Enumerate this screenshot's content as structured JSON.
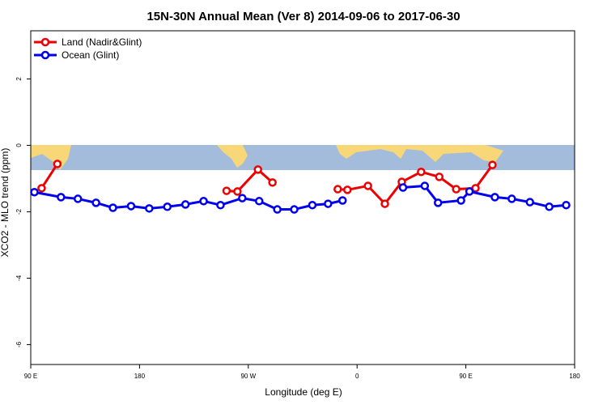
{
  "chart_data": {
    "type": "line",
    "title": "15N-30N Annual Mean (Ver 8)   2014-09-06 to 2017-06-30",
    "xlabel": "Longitude (deg E)",
    "ylabel": "XCO2 - MLO trend (ppm)",
    "xlim": [
      90,
      540
    ],
    "ylim": [
      -6.6,
      3.45
    ],
    "xticks": [
      {
        "value": 90,
        "label": "90 E"
      },
      {
        "value": 180,
        "label": "180"
      },
      {
        "value": 270,
        "label": "90 W"
      },
      {
        "value": 360,
        "label": "0"
      },
      {
        "value": 450,
        "label": "90 E"
      },
      {
        "value": 540,
        "label": "180"
      }
    ],
    "yticks": [
      -6,
      -4,
      -2,
      0,
      2
    ],
    "legend": "top-left",
    "series": [
      {
        "name": "Land (Nadir&Glint)",
        "color": "#ee0000",
        "x": [
          99,
          112,
          180,
          252,
          261,
          278,
          290,
          317,
          344,
          352,
          369,
          383,
          397,
          413,
          428,
          442,
          458,
          472
        ],
        "values": [
          -1.29,
          -0.56,
          null,
          -1.37,
          -1.39,
          -0.73,
          -1.12,
          null,
          -1.32,
          -1.34,
          -1.22,
          -1.76,
          -1.1,
          -0.8,
          -0.95,
          -1.32,
          -1.29,
          -0.59
        ]
      },
      {
        "name": "Ocean (Glint)",
        "color": "#0000ee",
        "x": [
          93,
          115,
          129,
          144,
          158,
          173,
          188,
          203,
          218,
          233,
          247,
          265,
          279,
          294,
          308,
          323,
          336,
          348,
          373,
          398,
          416,
          427,
          446,
          453,
          474,
          488,
          503,
          519,
          533
        ],
        "values": [
          -1.41,
          -1.56,
          -1.61,
          -1.73,
          -1.88,
          -1.83,
          -1.9,
          -1.85,
          -1.78,
          -1.68,
          -1.8,
          -1.59,
          -1.68,
          -1.93,
          -1.93,
          -1.8,
          -1.76,
          -1.66,
          null,
          -1.27,
          -1.22,
          -1.73,
          -1.66,
          -1.39,
          -1.56,
          -1.61,
          -1.71,
          -1.85,
          -1.8
        ]
      }
    ]
  }
}
